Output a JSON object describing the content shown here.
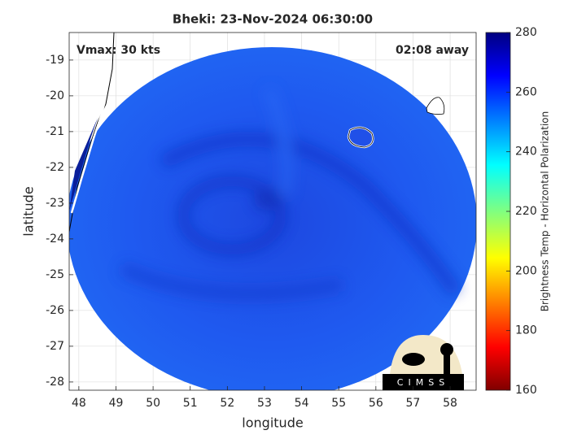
{
  "chart_data": {
    "type": "image",
    "title": "Bheki: 23-Nov-2024 06:30:00",
    "annotations": [
      "Vmax: 30 kts",
      "02:08 away"
    ],
    "xlabel": "longitude",
    "ylabel": "latitude",
    "xlim": [
      47.74,
      58.7
    ],
    "xticks": [
      48,
      49,
      50,
      51,
      52,
      53,
      54,
      55,
      56,
      57,
      58
    ],
    "ylim": [
      -28.23,
      -18.23
    ],
    "yticks": [
      -28,
      -27,
      -26,
      -25,
      -24,
      -23,
      -22,
      -21,
      -20,
      -19
    ],
    "grid": true,
    "clim": [
      160,
      280
    ],
    "cticks": [
      160,
      180,
      200,
      220,
      240,
      260,
      280
    ],
    "colorbar_label": "Brightness Temp - Horizontal Polarization",
    "logo": "CIMSS"
  }
}
